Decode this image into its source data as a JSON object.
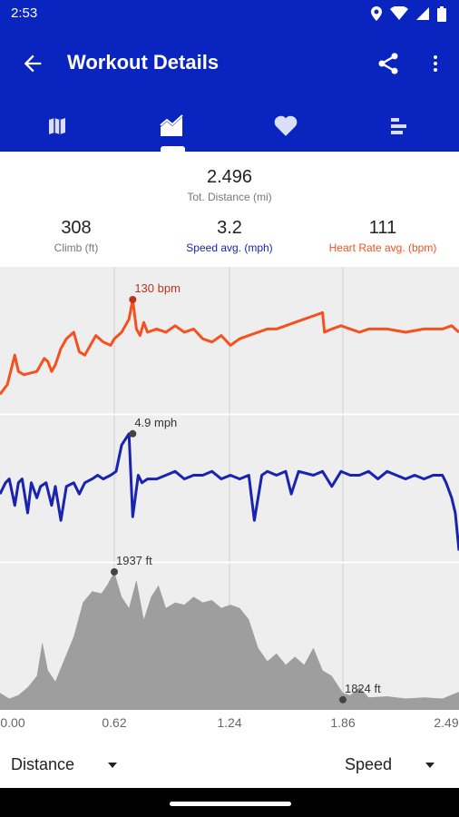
{
  "status_bar": {
    "time": "2:53"
  },
  "app_bar": {
    "title": "Workout Details"
  },
  "tabs": [
    "map",
    "charts",
    "heart-rate",
    "splits"
  ],
  "summary": {
    "distance": {
      "value": "2.496",
      "label": "Tot. Distance (mi)"
    },
    "climb": {
      "value": "308",
      "label": "Climb (ft)"
    },
    "speed": {
      "value": "3.2",
      "label": "Speed avg. (mph)"
    },
    "heart_rate": {
      "value": "111",
      "label": "Heart Rate avg. (bpm)"
    }
  },
  "colors": {
    "primary": "#0a24c0",
    "heart_rate": "#f4511e",
    "speed": "#1a23b0",
    "elevation": "#9e9e9e"
  },
  "chart_data": [
    {
      "type": "line",
      "name": "heart-rate",
      "x_range": [
        0,
        2.49
      ],
      "y_range": [
        95,
        140
      ],
      "x": [
        0,
        0.04,
        0.08,
        0.1,
        0.13,
        0.2,
        0.24,
        0.26,
        0.28,
        0.3,
        0.33,
        0.36,
        0.4,
        0.43,
        0.46,
        0.5,
        0.52,
        0.56,
        0.6,
        0.62,
        0.66,
        0.7,
        0.72,
        0.74,
        0.76,
        0.78,
        0.8,
        0.85,
        0.9,
        0.95,
        1.0,
        1.05,
        1.1,
        1.15,
        1.2,
        1.25,
        1.3,
        1.35,
        1.4,
        1.45,
        1.5,
        1.55,
        1.6,
        1.65,
        1.7,
        1.75,
        1.76,
        1.8,
        1.85,
        1.9,
        1.95,
        2.0,
        2.1,
        2.2,
        2.3,
        2.4,
        2.45,
        2.49
      ],
      "y": [
        101,
        104,
        113,
        108,
        107,
        108,
        112,
        111,
        108,
        110,
        115,
        118,
        120,
        114,
        113,
        117,
        119,
        117,
        116,
        118,
        120,
        124,
        130,
        121,
        119,
        123,
        120,
        121,
        120,
        122,
        120,
        121,
        118,
        117,
        119,
        116,
        118,
        119,
        120,
        121,
        121,
        122,
        123,
        124,
        125,
        126,
        120,
        121,
        122,
        121,
        120,
        121,
        121,
        120,
        121,
        121,
        122,
        120
      ],
      "annotation": {
        "x": 0.72,
        "y": 130,
        "label": "130 bpm"
      }
    },
    {
      "type": "line",
      "name": "speed",
      "x_range": [
        0,
        2.49
      ],
      "y_range": [
        1.5,
        5.4
      ],
      "x": [
        0,
        0.03,
        0.05,
        0.08,
        0.1,
        0.12,
        0.15,
        0.17,
        0.2,
        0.22,
        0.25,
        0.28,
        0.3,
        0.33,
        0.36,
        0.4,
        0.43,
        0.46,
        0.5,
        0.53,
        0.56,
        0.6,
        0.63,
        0.66,
        0.7,
        0.72,
        0.75,
        0.77,
        0.8,
        0.85,
        0.9,
        0.95,
        1.0,
        1.05,
        1.1,
        1.15,
        1.2,
        1.25,
        1.3,
        1.35,
        1.38,
        1.42,
        1.45,
        1.5,
        1.55,
        1.58,
        1.62,
        1.7,
        1.75,
        1.8,
        1.85,
        1.9,
        1.95,
        2.0,
        2.05,
        2.1,
        2.15,
        2.2,
        2.25,
        2.3,
        2.35,
        2.4,
        2.42,
        2.45,
        2.47,
        2.49
      ],
      "y": [
        3.3,
        3.6,
        3.7,
        3.0,
        3.6,
        3.7,
        2.8,
        3.6,
        3.2,
        3.5,
        3.6,
        3.0,
        3.5,
        2.6,
        3.5,
        3.6,
        3.3,
        3.6,
        3.7,
        3.8,
        3.7,
        3.8,
        3.9,
        4.6,
        4.9,
        2.7,
        3.8,
        3.6,
        3.7,
        3.7,
        3.8,
        3.9,
        3.7,
        3.8,
        3.8,
        3.9,
        3.7,
        3.8,
        3.7,
        3.8,
        2.6,
        3.8,
        3.9,
        3.8,
        3.9,
        3.3,
        3.9,
        3.8,
        3.9,
        3.5,
        3.9,
        3.8,
        3.8,
        3.9,
        3.7,
        3.9,
        3.8,
        3.7,
        3.8,
        3.7,
        3.8,
        3.8,
        3.6,
        3.2,
        2.8,
        1.8
      ],
      "annotation": {
        "x": 0.72,
        "y": 4.9,
        "label": "4.9 mph"
      }
    },
    {
      "type": "area",
      "name": "elevation",
      "x_range": [
        0,
        2.49
      ],
      "y_range": [
        1815,
        1945
      ],
      "x": [
        0,
        0.05,
        0.1,
        0.15,
        0.2,
        0.23,
        0.26,
        0.3,
        0.35,
        0.4,
        0.45,
        0.5,
        0.55,
        0.58,
        0.62,
        0.66,
        0.7,
        0.74,
        0.78,
        0.82,
        0.86,
        0.9,
        0.95,
        1.0,
        1.05,
        1.1,
        1.15,
        1.2,
        1.25,
        1.3,
        1.35,
        1.4,
        1.45,
        1.5,
        1.55,
        1.6,
        1.65,
        1.7,
        1.75,
        1.8,
        1.86,
        1.9,
        1.95,
        2.0,
        2.1,
        2.2,
        2.3,
        2.4,
        2.49
      ],
      "y": [
        1830,
        1825,
        1828,
        1835,
        1845,
        1875,
        1850,
        1840,
        1860,
        1880,
        1910,
        1920,
        1918,
        1925,
        1937,
        1915,
        1905,
        1930,
        1895,
        1915,
        1925,
        1905,
        1910,
        1908,
        1915,
        1910,
        1912,
        1905,
        1908,
        1905,
        1895,
        1870,
        1858,
        1865,
        1855,
        1862,
        1855,
        1870,
        1850,
        1845,
        1830,
        1828,
        1835,
        1826,
        1827,
        1825,
        1826,
        1825,
        1831
      ],
      "annotations": [
        {
          "x": 0.62,
          "y": 1937,
          "label": "1937 ft"
        },
        {
          "x": 1.86,
          "y": 1824,
          "label": "1824 ft"
        }
      ]
    }
  ],
  "x_ticks": [
    "0.00",
    "0.62",
    "1.24",
    "1.86",
    "2.49"
  ],
  "footer": {
    "left_dropdown": "Distance",
    "right_dropdown": "Speed"
  }
}
